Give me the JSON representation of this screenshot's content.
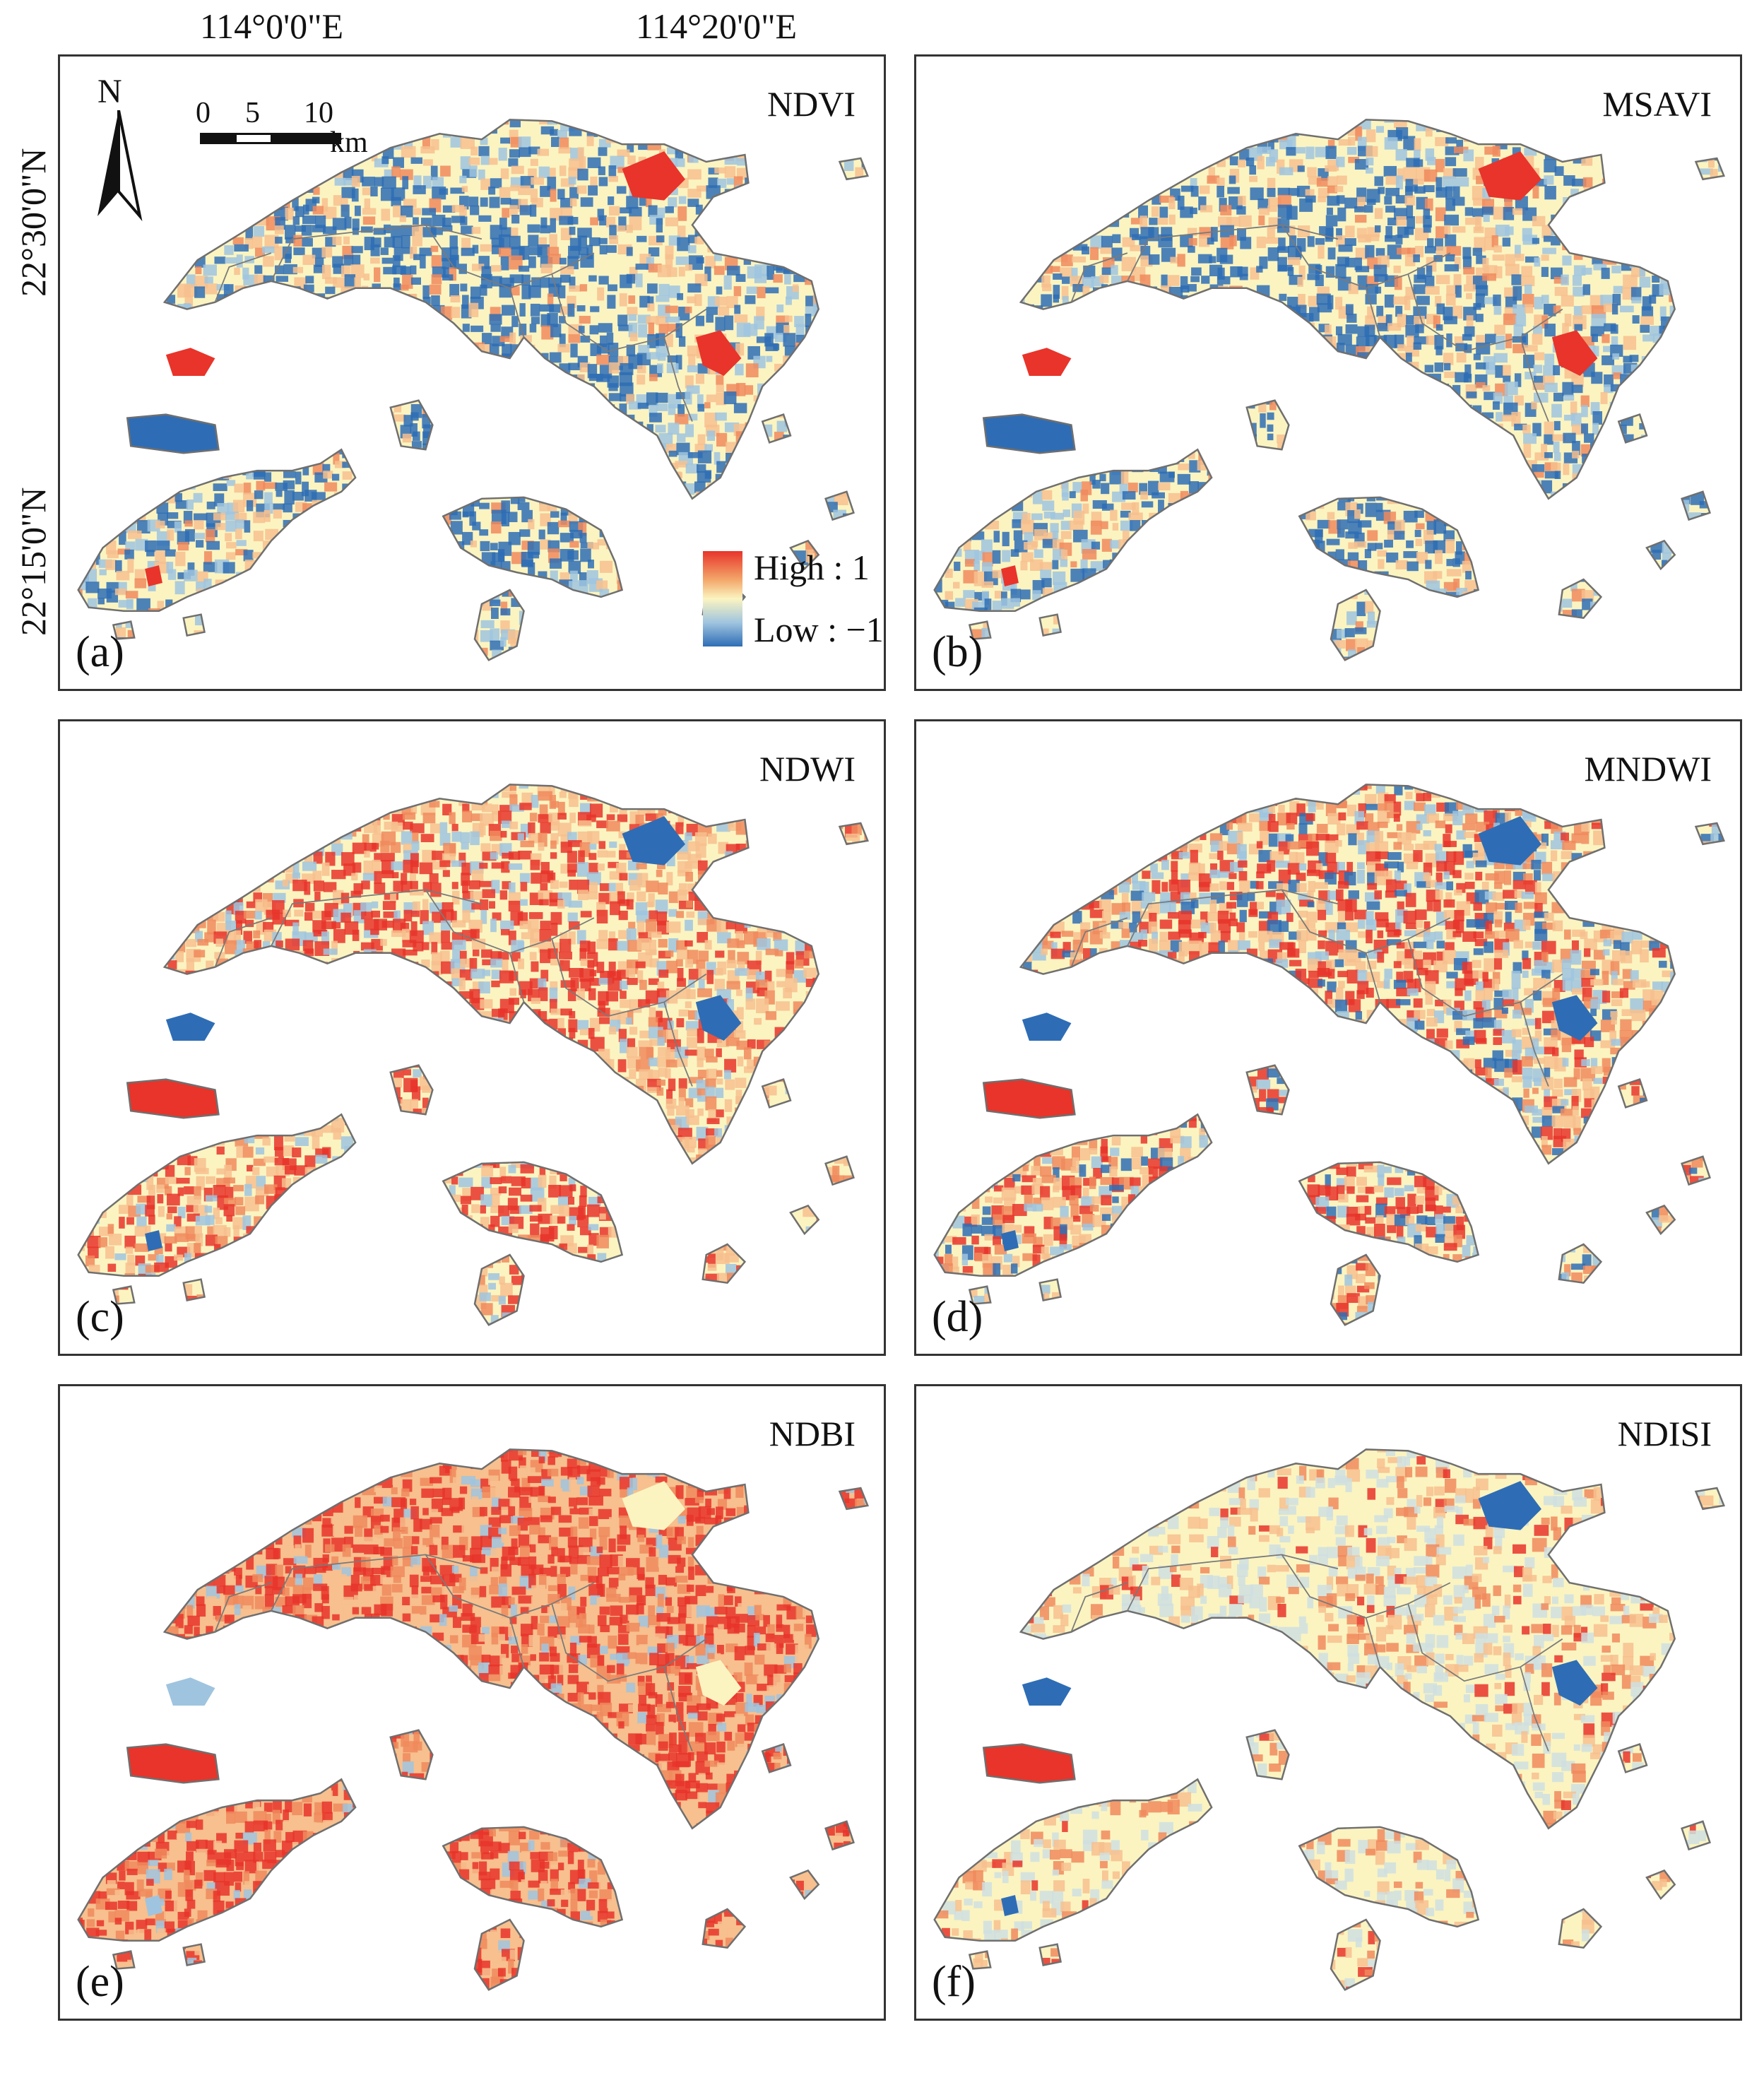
{
  "axes": {
    "lon_labels": [
      "114°0'0\"E",
      "114°20'0\"E"
    ],
    "lat_labels": [
      "22°30'0\"N",
      "22°15'0\"N"
    ]
  },
  "panels": [
    {
      "letter": "(a)",
      "title": "NDVI",
      "palette": "veg"
    },
    {
      "letter": "(b)",
      "title": "MSAVI",
      "palette": "veg"
    },
    {
      "letter": "(c)",
      "title": "NDWI",
      "palette": "water"
    },
    {
      "letter": "(d)",
      "title": "MNDWI",
      "palette": "mwater"
    },
    {
      "letter": "(e)",
      "title": "NDBI",
      "palette": "built"
    },
    {
      "letter": "(f)",
      "title": "NDISI",
      "palette": "imperv"
    }
  ],
  "legend": {
    "high": "High :  1",
    "low": "Low : −1"
  },
  "north_arrow": {
    "label": "N"
  },
  "scale_bar": {
    "ticks": [
      "0",
      "5",
      "10"
    ],
    "unit": "km"
  },
  "colors": {
    "high": "#e8342a",
    "mid": "#fbf4c1",
    "low": "#2e6db5",
    "outline": "#6f6f6f"
  }
}
